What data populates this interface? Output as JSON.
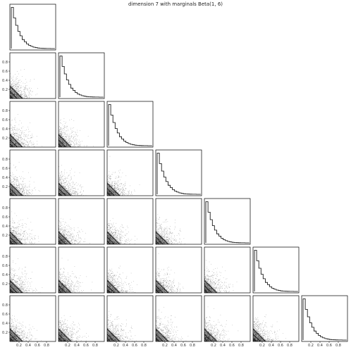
{
  "chart_data": {
    "type": "corner",
    "title": "dimension 7 with marginals Beta(1, 6)",
    "dimension": 7,
    "diagonal": {
      "type": "histogram",
      "bins": 20,
      "bin_range": [
        0,
        0.95
      ],
      "density_values": [
        5.5,
        4.1,
        3.1,
        2.3,
        1.7,
        1.2,
        0.9,
        0.62,
        0.42,
        0.29,
        0.19,
        0.12,
        0.075,
        0.045,
        0.027,
        0.016,
        0.009,
        0.005,
        0.003,
        0.001
      ]
    },
    "off_diagonal": {
      "type": "scatter_with_contours",
      "xlim": [
        0,
        1
      ],
      "ylim": [
        0,
        1
      ],
      "contour_offsets": [
        0.07,
        0.16,
        0.27
      ]
    },
    "x_tick_labels": [
      "0.2",
      "0.4",
      "0.6",
      "0.8"
    ],
    "y_tick_labels": [
      "0.2",
      "0.4",
      "0.6",
      "0.8"
    ]
  }
}
